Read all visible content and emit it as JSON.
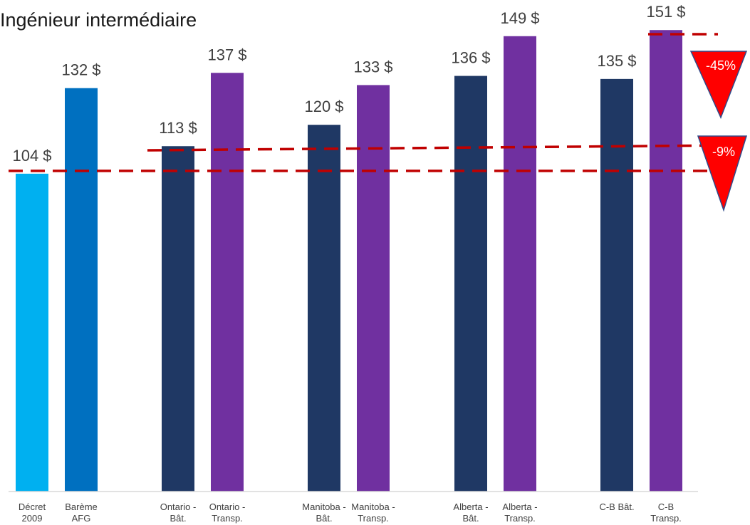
{
  "chart_data": {
    "type": "bar",
    "title": "Ingénieur intermédiaire",
    "xlabel": "",
    "ylabel": "",
    "ylim": [
      0,
      152
    ],
    "grid": false,
    "legend": "none",
    "categories": [
      [
        "Décret",
        "2009"
      ],
      [
        "Barème",
        "AFG"
      ],
      [
        "Ontario -",
        "Bât."
      ],
      [
        "Ontario -",
        "Transp."
      ],
      [
        "Manitoba -",
        "Bât."
      ],
      [
        "Manitoba -",
        "Transp."
      ],
      [
        "Alberta -",
        "Bât."
      ],
      [
        "Alberta -",
        "Transp."
      ],
      [
        "C-B Bât."
      ],
      [
        "C-B",
        "Transp."
      ]
    ],
    "values": [
      104,
      132,
      113,
      137,
      120,
      133,
      136,
      149,
      135,
      151
    ],
    "value_labels": [
      "104 $",
      "132 $",
      "113 $",
      "137 $",
      "120 $",
      "133 $",
      "136 $",
      "149 $",
      "135 $",
      "151 $"
    ],
    "bar_colors": [
      "#00b0f0",
      "#0070c0",
      "#1f3864",
      "#7030a0",
      "#1f3864",
      "#7030a0",
      "#1f3864",
      "#7030a0",
      "#1f3864",
      "#7030a0"
    ],
    "annotations": [
      {
        "text": "-45%",
        "color": "#ff0000"
      },
      {
        "text": "-9%",
        "color": "#ff0000"
      }
    ],
    "reference_line_color": "#c00000"
  }
}
